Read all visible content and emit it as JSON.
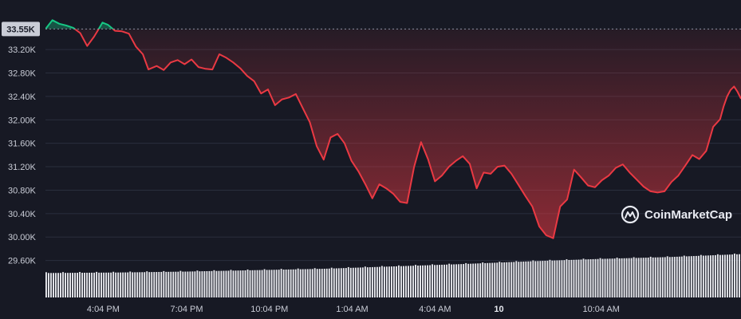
{
  "brand": {
    "name": "CoinMarketCap",
    "logo_icon": "coinmarketcap-logo-icon"
  },
  "chart_data": {
    "type": "line",
    "reference_value": 33550,
    "reference_label": "33.55K",
    "ylim": [
      29350,
      33800
    ],
    "y_ticks": [
      {
        "value": 33200,
        "label": "33.20K"
      },
      {
        "value": 32800,
        "label": "32.80K"
      },
      {
        "value": 32400,
        "label": "32.40K"
      },
      {
        "value": 32000,
        "label": "32.00K"
      },
      {
        "value": 31600,
        "label": "31.60K"
      },
      {
        "value": 31200,
        "label": "31.20K"
      },
      {
        "value": 30800,
        "label": "30.80K"
      },
      {
        "value": 30400,
        "label": "30.40K"
      },
      {
        "value": 30000,
        "label": "30.00K"
      },
      {
        "value": 29600,
        "label": "29.60K"
      }
    ],
    "x_domain": [
      0,
      1
    ],
    "x_ticks": [
      {
        "value": 0.083,
        "label": "4:04 PM",
        "bold": false
      },
      {
        "value": 0.203,
        "label": "7:04 PM",
        "bold": false
      },
      {
        "value": 0.322,
        "label": "10:04 PM",
        "bold": false
      },
      {
        "value": 0.441,
        "label": "1:04 AM",
        "bold": false
      },
      {
        "value": 0.56,
        "label": "4:04 AM",
        "bold": false
      },
      {
        "value": 0.652,
        "label": "10",
        "bold": true
      },
      {
        "value": 0.799,
        "label": "10:04 AM",
        "bold": false
      }
    ],
    "colors": {
      "up": "#16c784",
      "down": "#ea3943",
      "volume": "#e8e9ee",
      "grid": "#2a2e3d"
    },
    "price": [
      [
        0.0,
        33550
      ],
      [
        0.01,
        33700
      ],
      [
        0.02,
        33640
      ],
      [
        0.03,
        33610
      ],
      [
        0.04,
        33570
      ],
      [
        0.05,
        33480
      ],
      [
        0.06,
        33260
      ],
      [
        0.07,
        33420
      ],
      [
        0.075,
        33520
      ],
      [
        0.082,
        33660
      ],
      [
        0.09,
        33620
      ],
      [
        0.1,
        33520
      ],
      [
        0.11,
        33510
      ],
      [
        0.12,
        33470
      ],
      [
        0.13,
        33250
      ],
      [
        0.14,
        33120
      ],
      [
        0.148,
        32860
      ],
      [
        0.16,
        32920
      ],
      [
        0.17,
        32850
      ],
      [
        0.18,
        32980
      ],
      [
        0.19,
        33020
      ],
      [
        0.2,
        32950
      ],
      [
        0.21,
        33030
      ],
      [
        0.22,
        32900
      ],
      [
        0.23,
        32870
      ],
      [
        0.24,
        32860
      ],
      [
        0.25,
        33120
      ],
      [
        0.26,
        33060
      ],
      [
        0.27,
        32980
      ],
      [
        0.28,
        32880
      ],
      [
        0.29,
        32750
      ],
      [
        0.3,
        32660
      ],
      [
        0.31,
        32450
      ],
      [
        0.32,
        32520
      ],
      [
        0.33,
        32250
      ],
      [
        0.34,
        32350
      ],
      [
        0.35,
        32380
      ],
      [
        0.36,
        32440
      ],
      [
        0.37,
        32200
      ],
      [
        0.38,
        31960
      ],
      [
        0.39,
        31550
      ],
      [
        0.4,
        31320
      ],
      [
        0.41,
        31700
      ],
      [
        0.42,
        31760
      ],
      [
        0.43,
        31600
      ],
      [
        0.44,
        31300
      ],
      [
        0.45,
        31120
      ],
      [
        0.46,
        30900
      ],
      [
        0.47,
        30660
      ],
      [
        0.48,
        30900
      ],
      [
        0.49,
        30830
      ],
      [
        0.5,
        30740
      ],
      [
        0.51,
        30600
      ],
      [
        0.52,
        30580
      ],
      [
        0.53,
        31200
      ],
      [
        0.54,
        31620
      ],
      [
        0.55,
        31330
      ],
      [
        0.56,
        30950
      ],
      [
        0.57,
        31050
      ],
      [
        0.58,
        31200
      ],
      [
        0.59,
        31300
      ],
      [
        0.6,
        31380
      ],
      [
        0.61,
        31250
      ],
      [
        0.62,
        30830
      ],
      [
        0.63,
        31100
      ],
      [
        0.64,
        31080
      ],
      [
        0.65,
        31200
      ],
      [
        0.66,
        31220
      ],
      [
        0.67,
        31080
      ],
      [
        0.68,
        30890
      ],
      [
        0.69,
        30700
      ],
      [
        0.7,
        30520
      ],
      [
        0.71,
        30180
      ],
      [
        0.72,
        30030
      ],
      [
        0.73,
        29980
      ],
      [
        0.74,
        30520
      ],
      [
        0.75,
        30640
      ],
      [
        0.76,
        31150
      ],
      [
        0.77,
        31020
      ],
      [
        0.78,
        30880
      ],
      [
        0.79,
        30850
      ],
      [
        0.8,
        30970
      ],
      [
        0.81,
        31050
      ],
      [
        0.82,
        31180
      ],
      [
        0.83,
        31240
      ],
      [
        0.84,
        31100
      ],
      [
        0.85,
        30980
      ],
      [
        0.86,
        30860
      ],
      [
        0.87,
        30780
      ],
      [
        0.88,
        30760
      ],
      [
        0.89,
        30780
      ],
      [
        0.9,
        30940
      ],
      [
        0.91,
        31050
      ],
      [
        0.92,
        31220
      ],
      [
        0.93,
        31400
      ],
      [
        0.94,
        31330
      ],
      [
        0.95,
        31470
      ],
      [
        0.96,
        31880
      ],
      [
        0.97,
        32010
      ],
      [
        0.975,
        32230
      ],
      [
        0.98,
        32400
      ],
      [
        0.985,
        32510
      ],
      [
        0.99,
        32570
      ],
      [
        0.995,
        32480
      ],
      [
        1.0,
        32360
      ]
    ],
    "volume_relative": [
      [
        0.0,
        0.52
      ],
      [
        0.1,
        0.53
      ],
      [
        0.2,
        0.55
      ],
      [
        0.3,
        0.58
      ],
      [
        0.4,
        0.61
      ],
      [
        0.5,
        0.66
      ],
      [
        0.6,
        0.71
      ],
      [
        0.7,
        0.77
      ],
      [
        0.8,
        0.82
      ],
      [
        0.9,
        0.86
      ],
      [
        1.0,
        0.92
      ]
    ]
  }
}
